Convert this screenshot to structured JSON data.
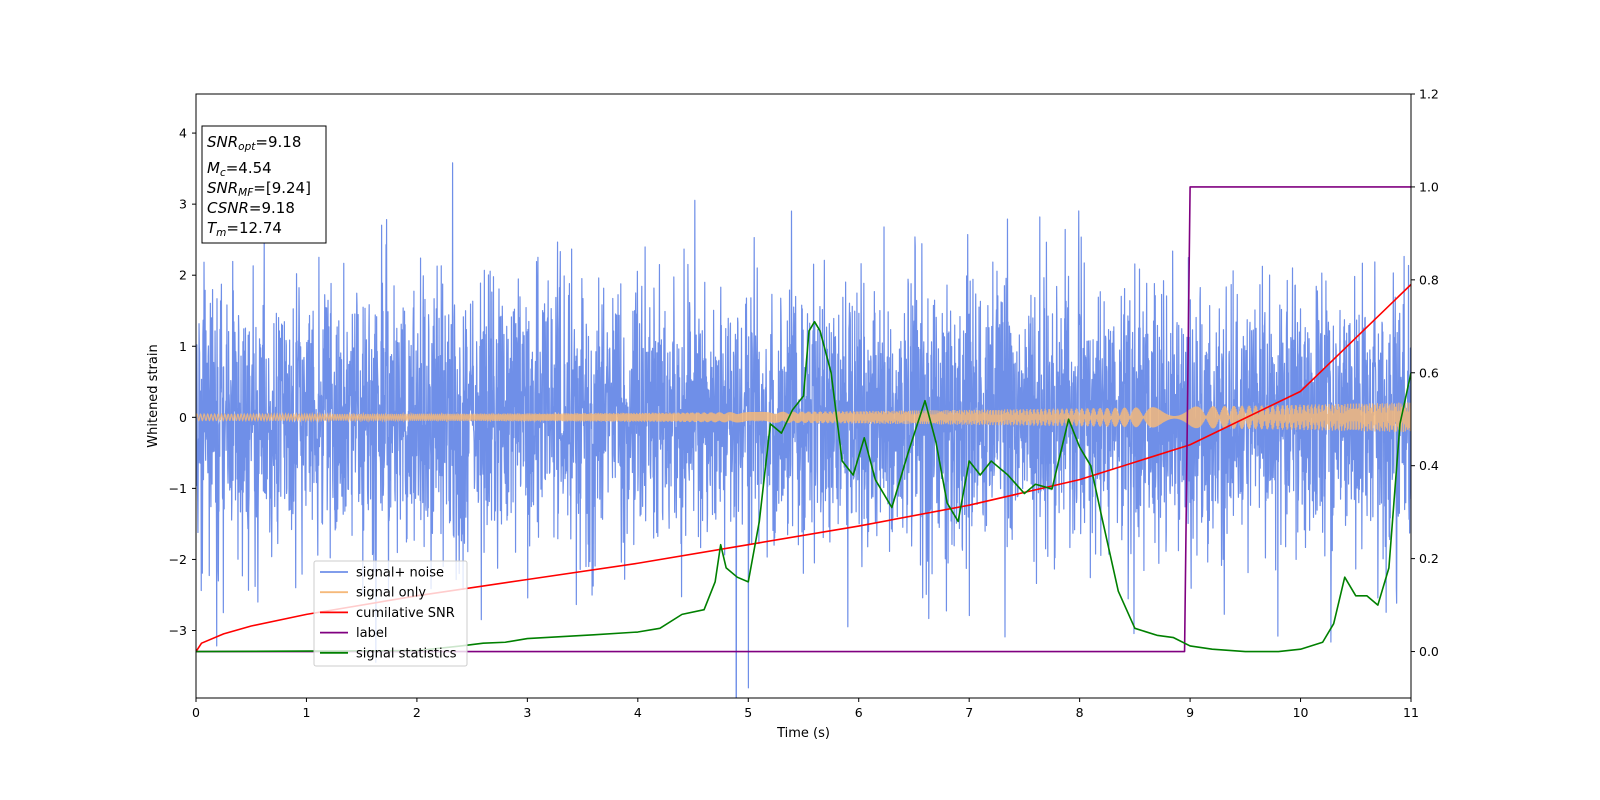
{
  "chart_data": {
    "type": "line",
    "title": "",
    "xlabel": "Time (s)",
    "ylabel_left": "Whitened strain",
    "ylabel_right": "",
    "xlim": [
      0,
      11
    ],
    "ylim_left": [
      -3.95,
      4.55
    ],
    "ylim_right": [
      -0.1,
      1.2
    ],
    "x_ticks": [
      0,
      1,
      2,
      3,
      4,
      5,
      6,
      7,
      8,
      9,
      10,
      11
    ],
    "y_left_ticks": [
      -3,
      -2,
      -1,
      0,
      1,
      2,
      3,
      4
    ],
    "y_right_ticks": [
      0.0,
      0.2,
      0.4,
      0.6,
      0.8,
      1.0,
      1.2
    ],
    "grid": false,
    "legend_position": "lower-left",
    "info_box": {
      "lines": [
        {
          "base": "SNR",
          "sub": "opt",
          "value": "=9.18"
        },
        {
          "base": "M",
          "sub": "c",
          "value": "=4.54"
        },
        {
          "base": "SNR",
          "sub": "MF",
          "value": "=[9.24]"
        },
        {
          "base": "CSNR",
          "sub": "",
          "value": "=9.18"
        },
        {
          "base": "T",
          "sub": "m",
          "value": "=12.74"
        }
      ]
    },
    "series": [
      {
        "name": "signal+ noise",
        "color": "#6f8fe8",
        "axis": "left",
        "kind": "noise",
        "sigma": 1.0,
        "n_samples": 4400
      },
      {
        "name": "signal only",
        "color": "#f5b97a",
        "axis": "left",
        "kind": "chirp",
        "amp_start": 0.045,
        "amp_end": 0.21
      },
      {
        "name": "cumilative SNR",
        "color": "#ff0000",
        "axis": "right",
        "x": [
          0,
          0.05,
          0.25,
          0.5,
          1,
          2,
          3,
          4,
          5,
          6,
          7,
          8,
          9,
          10,
          11
        ],
        "y": [
          0.0,
          0.018,
          0.038,
          0.055,
          0.08,
          0.12,
          0.155,
          0.19,
          0.23,
          0.27,
          0.315,
          0.37,
          0.445,
          0.56,
          0.79
        ]
      },
      {
        "name": "label",
        "color": "#800080",
        "axis": "right",
        "x": [
          0,
          8.95,
          9.0,
          11
        ],
        "y": [
          0.0,
          0.0,
          1.0,
          1.0
        ]
      },
      {
        "name": "signal statistics",
        "color": "#008000",
        "axis": "right",
        "x": [
          0,
          1,
          2,
          2.4,
          2.6,
          2.8,
          3.0,
          3.3,
          3.6,
          4.0,
          4.2,
          4.4,
          4.6,
          4.7,
          4.75,
          4.8,
          4.9,
          5.0,
          5.1,
          5.2,
          5.3,
          5.4,
          5.5,
          5.55,
          5.6,
          5.65,
          5.75,
          5.85,
          5.95,
          6.05,
          6.15,
          6.3,
          6.45,
          6.6,
          6.7,
          6.8,
          6.9,
          7.0,
          7.1,
          7.2,
          7.35,
          7.5,
          7.6,
          7.75,
          7.9,
          8.0,
          8.1,
          8.2,
          8.35,
          8.5,
          8.7,
          8.85,
          9.0,
          9.2,
          9.5,
          9.8,
          10.0,
          10.2,
          10.3,
          10.4,
          10.5,
          10.6,
          10.7,
          10.8,
          10.9,
          11.0
        ],
        "y": [
          0.0,
          0.001,
          0.002,
          0.012,
          0.018,
          0.02,
          0.028,
          0.032,
          0.036,
          0.042,
          0.05,
          0.08,
          0.09,
          0.15,
          0.23,
          0.18,
          0.16,
          0.15,
          0.28,
          0.49,
          0.47,
          0.52,
          0.55,
          0.69,
          0.71,
          0.69,
          0.6,
          0.41,
          0.38,
          0.46,
          0.37,
          0.31,
          0.43,
          0.54,
          0.45,
          0.32,
          0.28,
          0.41,
          0.38,
          0.41,
          0.38,
          0.34,
          0.36,
          0.35,
          0.5,
          0.44,
          0.4,
          0.29,
          0.13,
          0.05,
          0.035,
          0.03,
          0.012,
          0.005,
          0.0,
          0.0,
          0.005,
          0.02,
          0.06,
          0.16,
          0.12,
          0.12,
          0.1,
          0.18,
          0.49,
          0.6
        ]
      }
    ]
  }
}
